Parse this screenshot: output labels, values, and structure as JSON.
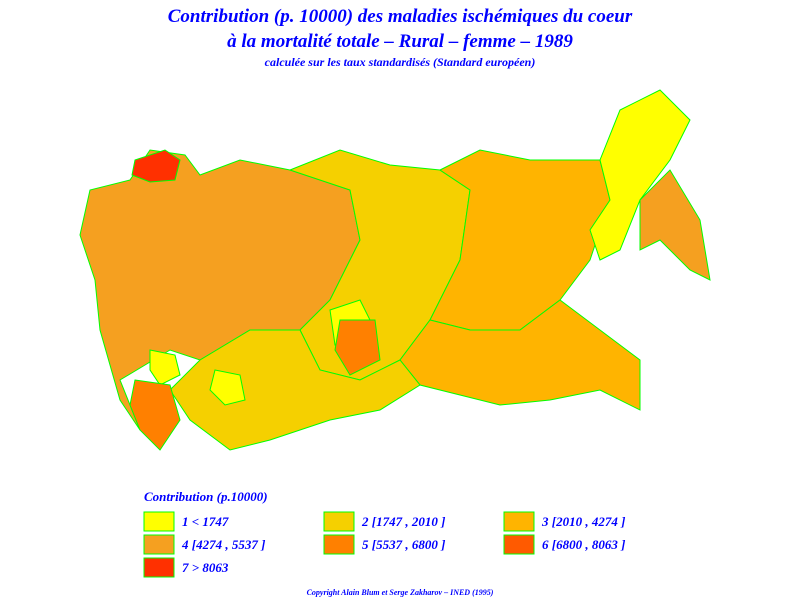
{
  "header": {
    "title_line1": "Contribution (p. 10000) des maladies ischémiques du coeur",
    "title_line2": "à la mortalité totale  –  Rural  –  femme  –  1989",
    "subtitle": "calculée sur les taux standardisés (Standard européen)"
  },
  "legend": {
    "title": "Contribution  (p.10000)",
    "items": [
      {
        "label": "1  <  1747",
        "color": "#ffff00"
      },
      {
        "label": "2  [1747  ,  2010  ]",
        "color": "#f5d000"
      },
      {
        "label": "3  [2010  ,  4274  ]",
        "color": "#ffb400"
      },
      {
        "label": "4  [4274  ,  5537  ]",
        "color": "#f5a020"
      },
      {
        "label": "5  [5537  ,  6800  ]",
        "color": "#ff8000"
      },
      {
        "label": "6  [6800  ,  8063  ]",
        "color": "#ff5a00"
      },
      {
        "label": "7  >  8063",
        "color": "#ff3000"
      }
    ]
  },
  "footer": {
    "copyright": "Copyright  Alain  Blum  et  Serge  Zakharov  –  INED  (1995)"
  }
}
